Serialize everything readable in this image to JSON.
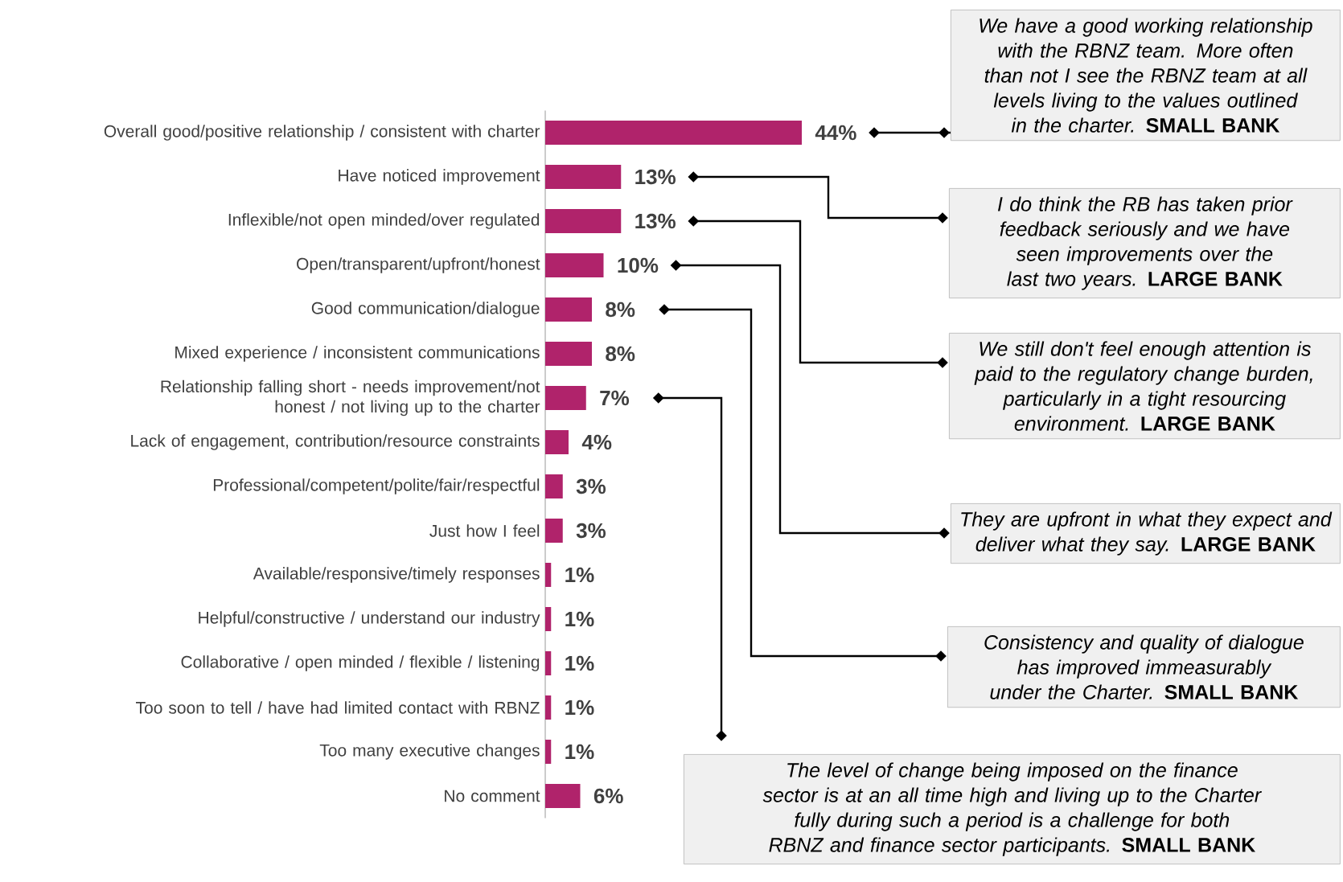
{
  "chart_data": {
    "type": "bar",
    "orientation": "horizontal",
    "color": "#b0236b",
    "categories": [
      "Overall good/positive relationship / consistent with charter",
      "Have noticed improvement",
      "Inflexible/not open minded/over regulated",
      "Open/transparent/upfront/honest",
      "Good communication/dialogue",
      "Mixed experience / inconsistent communications",
      "Relationship falling short - needs improvement/not honest / not living up to the charter",
      "Lack of engagement, contribution/resource constraints",
      "Professional/competent/polite/fair/respectful",
      "Just how I feel",
      "Available/responsive/timely responses",
      "Helpful/constructive / understand our industry",
      "Collaborative / open minded / flexible / listening",
      "Too soon to tell / have had limited contact with RBNZ",
      "Too many executive changes",
      "No comment"
    ],
    "values": [
      44,
      13,
      13,
      10,
      8,
      8,
      7,
      4,
      3,
      3,
      1,
      1,
      1,
      1,
      1,
      6
    ],
    "value_labels": [
      "44%",
      "13%",
      "13%",
      "10%",
      "8%",
      "8%",
      "7%",
      "4%",
      "3%",
      "3%",
      "1%",
      "1%",
      "1%",
      "1%",
      "1%",
      "6%"
    ],
    "annotations": [
      "*We have a good working relationship with the RBNZ team. More often than not I see the RBNZ team at all levels living to the values outlined in the charter.* **SMALL BANK**",
      "*I do think the RB has taken prior feedback seriously and we have seen improvements over the last two years.* **LARGE BANK**",
      "*We still don't feel enough attention is paid to the regulatory change burden, particularly in a tight resourcing environment.* **LARGE BANK**",
      "*They are upfront in what they expect and deliver what they say.* **LARGE BANK**",
      "*Consistency and quality of dialogue has improved immeasurably under the Charter.* **SMALL BANK**",
      "*The level of change being imposed on the finance sector is at an all time high and living up to the Charter fully during such a period is a challenge for both RBNZ and finance sector participants.* **SMALL BANK**"
    ]
  }
}
